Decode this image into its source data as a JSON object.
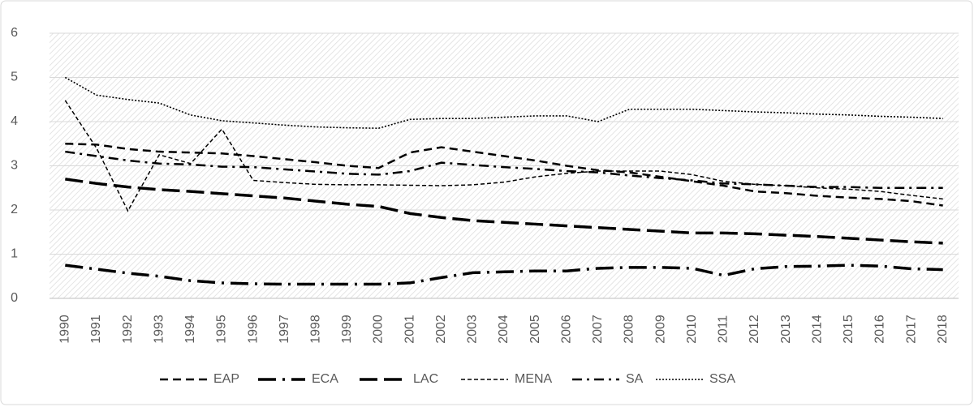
{
  "chart_data": {
    "type": "line",
    "categories": [
      "1990",
      "1991",
      "1992",
      "1993",
      "1994",
      "1995",
      "1996",
      "1997",
      "1998",
      "1999",
      "2000",
      "2001",
      "2002",
      "2003",
      "2004",
      "2005",
      "2006",
      "2007",
      "2008",
      "2009",
      "2010",
      "2011",
      "2012",
      "2013",
      "2014",
      "2015",
      "2016",
      "2017",
      "2018"
    ],
    "series": [
      {
        "name": "EAP",
        "color": "#000000",
        "values": [
          3.5,
          3.48,
          3.38,
          3.32,
          3.3,
          3.28,
          3.22,
          3.15,
          3.08,
          3.0,
          2.95,
          3.3,
          3.42,
          3.32,
          3.22,
          3.12,
          3.0,
          2.9,
          2.85,
          2.75,
          2.65,
          2.55,
          2.42,
          2.38,
          2.32,
          2.28,
          2.25,
          2.2,
          2.1
        ]
      },
      {
        "name": "ECA",
        "color": "#000000",
        "values": [
          0.75,
          0.66,
          0.57,
          0.5,
          0.4,
          0.35,
          0.33,
          0.32,
          0.32,
          0.32,
          0.32,
          0.35,
          0.47,
          0.58,
          0.6,
          0.62,
          0.62,
          0.68,
          0.7,
          0.7,
          0.68,
          0.52,
          0.67,
          0.72,
          0.73,
          0.75,
          0.73,
          0.67,
          0.65
        ]
      },
      {
        "name": "LAC",
        "color": "#000000",
        "values": [
          2.7,
          2.6,
          2.52,
          2.46,
          2.42,
          2.37,
          2.32,
          2.27,
          2.2,
          2.13,
          2.08,
          1.92,
          1.83,
          1.76,
          1.72,
          1.68,
          1.64,
          1.6,
          1.56,
          1.52,
          1.48,
          1.48,
          1.46,
          1.43,
          1.4,
          1.36,
          1.32,
          1.28,
          1.25
        ]
      },
      {
        "name": "MENA",
        "color": "#000000",
        "values": [
          4.48,
          3.4,
          1.98,
          3.25,
          3.05,
          3.83,
          2.67,
          2.62,
          2.58,
          2.57,
          2.57,
          2.56,
          2.55,
          2.57,
          2.63,
          2.75,
          2.83,
          2.88,
          2.88,
          2.88,
          2.8,
          2.65,
          2.58,
          2.55,
          2.5,
          2.47,
          2.42,
          2.33,
          2.25
        ]
      },
      {
        "name": "SA",
        "color": "#000000",
        "values": [
          3.32,
          3.22,
          3.12,
          3.05,
          3.03,
          2.98,
          2.97,
          2.92,
          2.87,
          2.82,
          2.8,
          2.88,
          3.07,
          3.02,
          2.97,
          2.93,
          2.88,
          2.85,
          2.78,
          2.72,
          2.67,
          2.6,
          2.58,
          2.55,
          2.52,
          2.52,
          2.5,
          2.5,
          2.5
        ]
      },
      {
        "name": "SSA",
        "color": "#000000",
        "values": [
          5.0,
          4.6,
          4.5,
          4.42,
          4.15,
          4.02,
          3.97,
          3.92,
          3.88,
          3.86,
          3.85,
          4.05,
          4.07,
          4.07,
          4.1,
          4.13,
          4.13,
          4.0,
          4.28,
          4.28,
          4.28,
          4.25,
          4.22,
          4.2,
          4.17,
          4.15,
          4.12,
          4.1,
          4.07
        ]
      }
    ],
    "ylim": [
      0,
      6
    ],
    "yticks": [
      0,
      1,
      2,
      3,
      4,
      5,
      6
    ],
    "grid": true,
    "legend": "bottom"
  }
}
